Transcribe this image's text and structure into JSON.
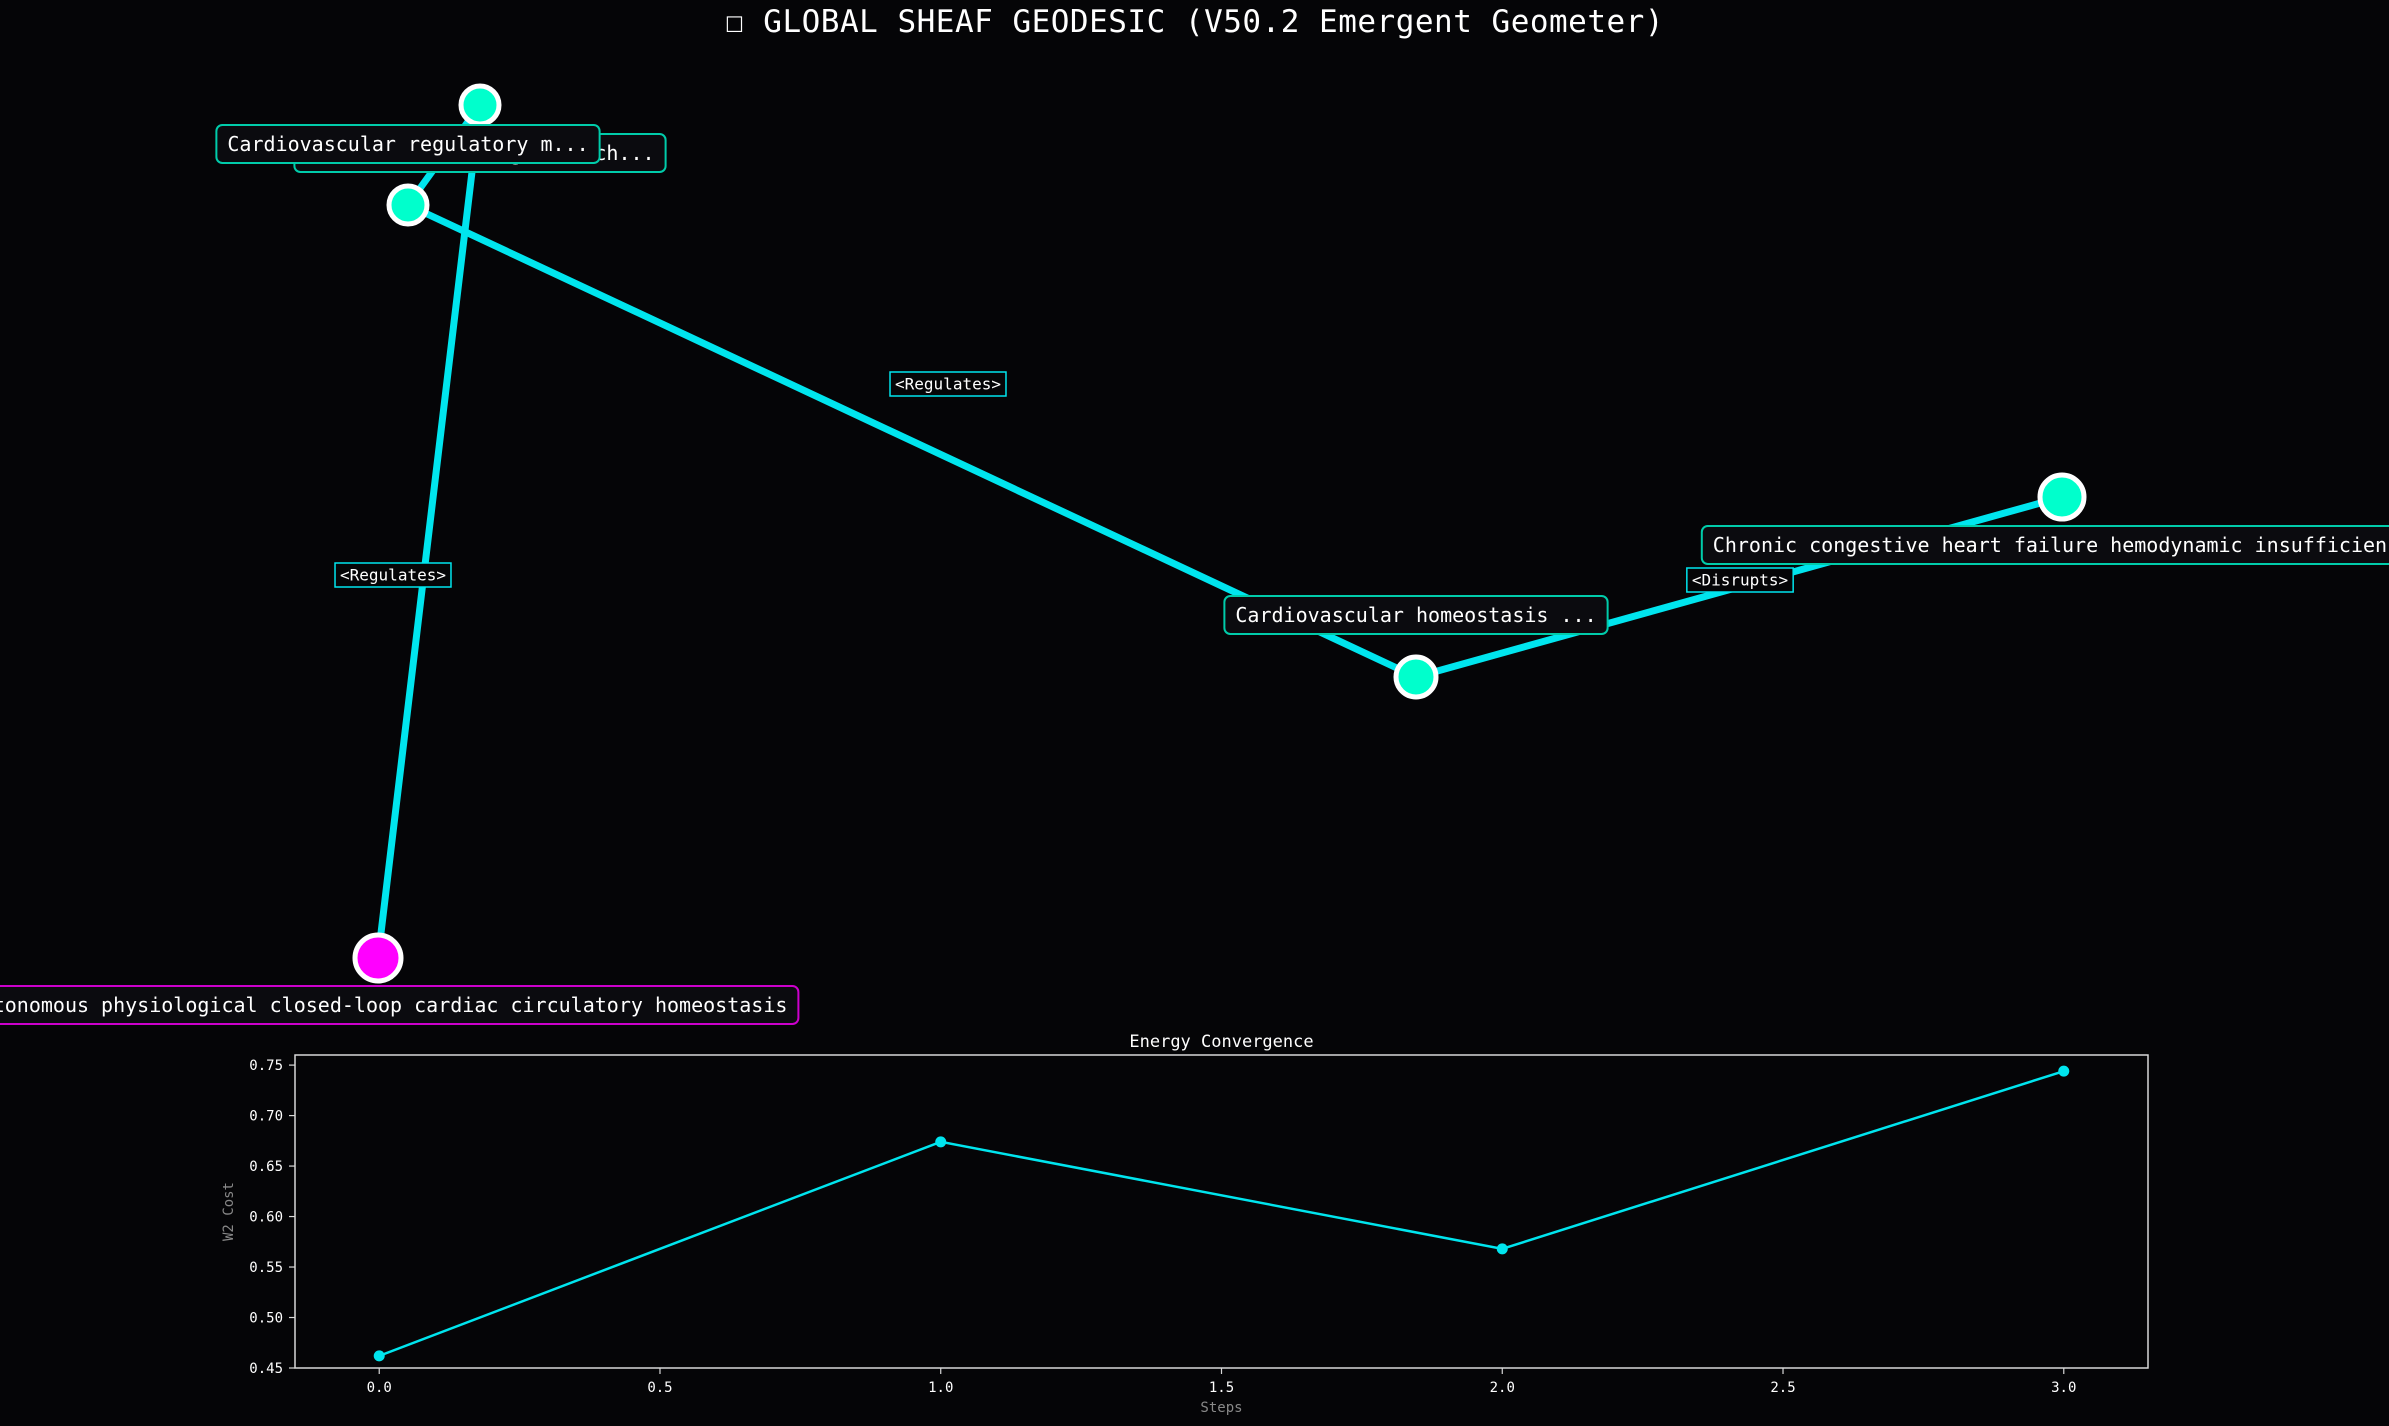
{
  "window_title": "☐ GLOBAL SHEAF GEODESIC (V50.2 Emergent Geometer)",
  "colors": {
    "background": "#050507",
    "edge": "#00e5ee",
    "node": "#00ffcc",
    "source_node": "#ff00ff",
    "node_stroke": "#ffffff",
    "label_border": "#00ccaa",
    "source_label_border": "#cc00cc",
    "energy_line": "#00e5ee"
  },
  "graph": {
    "nodes": [
      {
        "id": "n1",
        "label": "Autonomous physiological closed-loop cardiac circulatory homeostasis",
        "role": "source"
      },
      {
        "id": "n2",
        "label": "Cardiovascular regulatory m...",
        "role": "intermediate"
      },
      {
        "id": "n3",
        "label": "Cardiovascular reg... mech...",
        "role": "intermediate"
      },
      {
        "id": "n4",
        "label": "Cardiovascular homeostasis ...",
        "role": "intermediate"
      },
      {
        "id": "n5",
        "label": "Chronic congestive heart failure hemodynamic insufficiency",
        "role": "target"
      }
    ],
    "edges": [
      {
        "from": "n1",
        "to": "n2",
        "label": "<Regulates>"
      },
      {
        "from": "n2",
        "to": "n3",
        "label": ""
      },
      {
        "from": "n3",
        "to": "n4",
        "label": "<Regulates>"
      },
      {
        "from": "n4",
        "to": "n5",
        "label": "<Disrupts>"
      }
    ]
  },
  "chart_data": {
    "type": "line",
    "title": "Energy Convergence",
    "xlabel": "Steps",
    "ylabel": "W2 Cost",
    "x": [
      0,
      1,
      2,
      3
    ],
    "y": [
      0.462,
      0.674,
      0.568,
      0.744
    ],
    "xlim": [
      -0.15,
      3.15
    ],
    "ylim": [
      0.45,
      0.76
    ],
    "xticks": [
      0.0,
      0.5,
      1.0,
      1.5,
      2.0,
      2.5,
      3.0
    ],
    "xtick_labels": [
      "0.0",
      "0.5",
      "1.0",
      "1.5",
      "2.0",
      "2.5",
      "3.0"
    ],
    "yticks": [
      0.45,
      0.5,
      0.55,
      0.6,
      0.65,
      0.7,
      0.75
    ],
    "ytick_labels": [
      "0.45",
      "0.50",
      "0.55",
      "0.60",
      "0.65",
      "0.70",
      "0.75"
    ],
    "grid": false,
    "marker": "circle"
  }
}
